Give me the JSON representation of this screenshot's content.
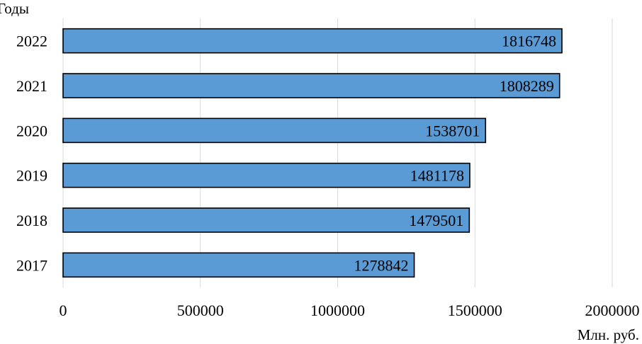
{
  "chart_data": {
    "type": "bar",
    "orientation": "horizontal",
    "categories": [
      "2022",
      "2021",
      "2020",
      "2019",
      "2018",
      "2017"
    ],
    "values": [
      1816748,
      1808289,
      1538701,
      1481178,
      1479501,
      1278842
    ],
    "data_labels": [
      "1816748",
      "1808289",
      "1538701",
      "1481178",
      "1479501",
      "1278842"
    ],
    "xlabel": "Млн. руб.",
    "ylabel": "Годы",
    "xlim": [
      0,
      2000000
    ],
    "xticks": [
      0,
      500000,
      1000000,
      1500000,
      2000000
    ],
    "xtick_labels": [
      "0",
      "500000",
      "1000000",
      "1500000",
      "2000000"
    ],
    "grid": "vertical",
    "legend": "none",
    "bar_color": "#5B9BD5",
    "bar_edge_color": "#000000",
    "grid_color": "#D9D9D9"
  }
}
